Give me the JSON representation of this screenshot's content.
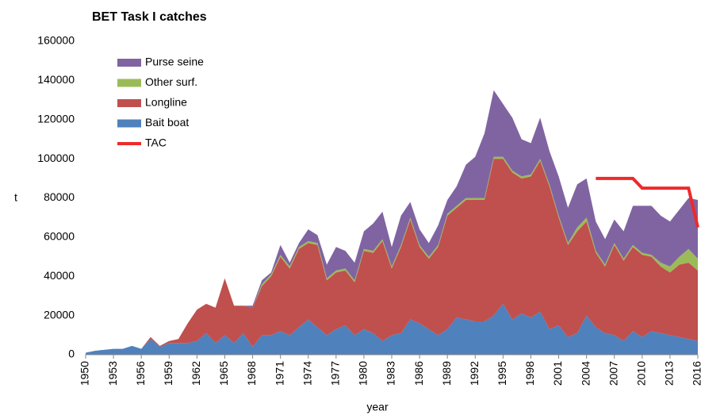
{
  "chart_data": {
    "type": "stacked_area",
    "title": "BET Task I catches",
    "x_label": "year",
    "y_label": "t",
    "legend": "upper left",
    "x": [
      1950,
      1951,
      1952,
      1953,
      1954,
      1955,
      1956,
      1957,
      1958,
      1959,
      1960,
      1961,
      1962,
      1963,
      1964,
      1965,
      1966,
      1967,
      1968,
      1969,
      1970,
      1971,
      1972,
      1973,
      1974,
      1975,
      1976,
      1977,
      1978,
      1979,
      1980,
      1981,
      1982,
      1983,
      1984,
      1985,
      1986,
      1987,
      1988,
      1989,
      1990,
      1991,
      1992,
      1993,
      1994,
      1995,
      1996,
      1997,
      1998,
      1999,
      2000,
      2001,
      2002,
      2003,
      2004,
      2005,
      2006,
      2007,
      2008,
      2009,
      2010,
      2011,
      2012,
      2013,
      2014,
      2015,
      2016
    ],
    "xlim": [
      1950,
      2016
    ],
    "xticks": [
      1950,
      1953,
      1956,
      1959,
      1962,
      1965,
      1968,
      1971,
      1974,
      1977,
      1980,
      1983,
      1986,
      1989,
      1992,
      1995,
      1998,
      2001,
      2004,
      2007,
      2010,
      2013,
      2016
    ],
    "ylim": [
      0,
      160000
    ],
    "yticks": [
      0,
      20000,
      40000,
      60000,
      80000,
      100000,
      120000,
      140000,
      160000
    ],
    "series": [
      {
        "name": "Bait boat",
        "color": "#4f81bd",
        "values": [
          1000,
          2000,
          2500,
          3000,
          3000,
          4500,
          3000,
          8000,
          4000,
          6000,
          6000,
          6000,
          7000,
          11000,
          6000,
          10000,
          6000,
          11000,
          4000,
          10000,
          10000,
          12000,
          10000,
          14000,
          18000,
          14000,
          10000,
          13000,
          15000,
          10000,
          13000,
          11000,
          7000,
          10000,
          11000,
          18000,
          16000,
          13000,
          10000,
          13000,
          19000,
          18000,
          17000,
          17000,
          20000,
          26000,
          18000,
          21000,
          19000,
          22000,
          13000,
          15000,
          9000,
          11000,
          20000,
          14000,
          11000,
          10000,
          7000,
          12000,
          9000,
          12000,
          11000,
          10000,
          9000,
          8000,
          7000
        ]
      },
      {
        "name": "Longline",
        "color": "#c0504d",
        "values": [
          0,
          0,
          0,
          0,
          0,
          0,
          0,
          1000,
          500,
          1000,
          2000,
          10000,
          16000,
          15000,
          18000,
          29000,
          19000,
          14000,
          20000,
          25000,
          30000,
          38000,
          34000,
          40000,
          39000,
          42000,
          28000,
          29000,
          28000,
          27000,
          40000,
          41000,
          51000,
          34000,
          44000,
          51000,
          39000,
          36000,
          45000,
          58000,
          56000,
          61000,
          62000,
          62000,
          80000,
          74000,
          75000,
          69000,
          72000,
          77000,
          73000,
          55000,
          47000,
          52000,
          48000,
          38000,
          34000,
          46000,
          41000,
          43000,
          42000,
          38000,
          34000,
          32000,
          37000,
          39000,
          36000
        ]
      },
      {
        "name": "Other surf.",
        "color": "#9bbb59",
        "values": [
          0,
          0,
          0,
          0,
          0,
          0,
          0,
          0,
          0,
          0,
          0,
          0,
          0,
          0,
          0,
          0,
          0,
          0,
          0,
          1000,
          1000,
          1000,
          1000,
          1000,
          1000,
          1000,
          1000,
          1000,
          1000,
          1000,
          1000,
          1000,
          1000,
          1000,
          1000,
          1000,
          1000,
          1000,
          1000,
          1000,
          1000,
          1000,
          1000,
          1000,
          1000,
          1000,
          1000,
          1000,
          1000,
          1000,
          1000,
          1000,
          1000,
          2000,
          2000,
          1000,
          1000,
          1000,
          1000,
          1000,
          1000,
          1000,
          2000,
          3000,
          4000,
          7000,
          6000
        ]
      },
      {
        "name": "Purse seine",
        "color": "#8064a2",
        "values": [
          0,
          0,
          0,
          0,
          0,
          0,
          0,
          0,
          0,
          0,
          0,
          0,
          0,
          0,
          0,
          0,
          0,
          0,
          1000,
          2000,
          1000,
          5000,
          2000,
          2000,
          6000,
          4000,
          7000,
          12000,
          9000,
          9000,
          9000,
          14000,
          14000,
          10000,
          15000,
          8000,
          8000,
          7000,
          10000,
          7000,
          10000,
          17000,
          21000,
          33000,
          34000,
          27000,
          27000,
          19000,
          16000,
          21000,
          17000,
          20000,
          18000,
          22000,
          20000,
          15000,
          13000,
          12000,
          14000,
          20000,
          24000,
          25000,
          24000,
          23000,
          24000,
          26000,
          30000
        ]
      },
      {
        "name": "TAC",
        "color": "#ee2a2a",
        "line": true,
        "values": [
          null,
          null,
          null,
          null,
          null,
          null,
          null,
          null,
          null,
          null,
          null,
          null,
          null,
          null,
          null,
          null,
          null,
          null,
          null,
          null,
          null,
          null,
          null,
          null,
          null,
          null,
          null,
          null,
          null,
          null,
          null,
          null,
          null,
          null,
          null,
          null,
          null,
          null,
          null,
          null,
          null,
          null,
          null,
          null,
          null,
          null,
          null,
          null,
          null,
          null,
          null,
          null,
          null,
          null,
          null,
          90000,
          90000,
          90000,
          90000,
          90000,
          85000,
          85000,
          85000,
          85000,
          85000,
          85000,
          65000
        ]
      }
    ]
  }
}
